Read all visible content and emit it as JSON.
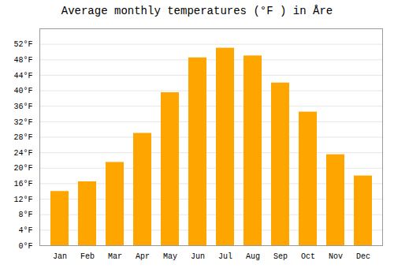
{
  "chart_data": {
    "type": "bar",
    "title": "Average monthly temperatures (°F ) in Åre",
    "categories": [
      "Jan",
      "Feb",
      "Mar",
      "Apr",
      "May",
      "Jun",
      "Jul",
      "Aug",
      "Sep",
      "Oct",
      "Nov",
      "Dec"
    ],
    "values": [
      14,
      16.5,
      21.5,
      29,
      39.5,
      48.5,
      51,
      49,
      42,
      34.5,
      23.5,
      18
    ],
    "color": "#FFA500",
    "ylim": [
      0,
      56
    ],
    "yticks": [
      {
        "value": 0,
        "label": "0°F"
      },
      {
        "value": 4,
        "label": "4°F"
      },
      {
        "value": 8,
        "label": "8°F"
      },
      {
        "value": 12,
        "label": "12°F"
      },
      {
        "value": 16,
        "label": "16°F"
      },
      {
        "value": 20,
        "label": "20°F"
      },
      {
        "value": 24,
        "label": "24°F"
      },
      {
        "value": 28,
        "label": "28°F"
      },
      {
        "value": 32,
        "label": "32°F"
      },
      {
        "value": 36,
        "label": "36°F"
      },
      {
        "value": 40,
        "label": "40°F"
      },
      {
        "value": 44,
        "label": "44°F"
      },
      {
        "value": 48,
        "label": "48°F"
      },
      {
        "value": 52,
        "label": "52°F"
      }
    ],
    "grid": true
  }
}
